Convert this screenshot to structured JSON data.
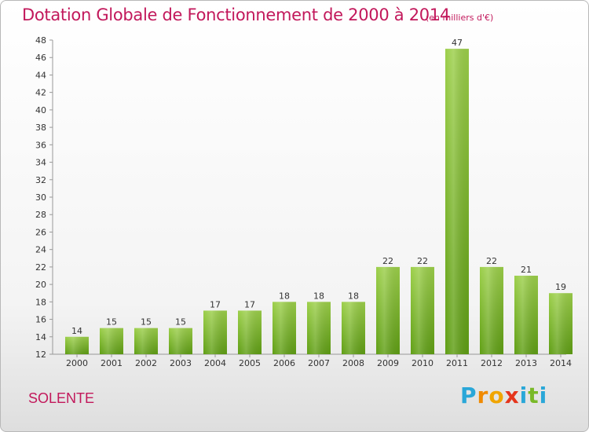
{
  "header": {
    "title": "Dotation Globale de Fonctionnement de 2000 à 2014",
    "subtitle": "(en milliers d'€)"
  },
  "commune": "SOLENTE",
  "logo": {
    "letters": [
      "P",
      "r",
      "o",
      "x",
      "i",
      "t",
      "i"
    ],
    "colors": [
      "#2aa7d8",
      "#f08a00",
      "#f0a500",
      "#e5351c",
      "#2aa7d8",
      "#79b928",
      "#2aa7d8"
    ]
  },
  "chart_data": {
    "type": "bar",
    "categories": [
      "2000",
      "2001",
      "2002",
      "2003",
      "2004",
      "2005",
      "2006",
      "2007",
      "2008",
      "2009",
      "2010",
      "2011",
      "2012",
      "2013",
      "2014"
    ],
    "values": [
      14,
      15,
      15,
      15,
      17,
      17,
      18,
      18,
      18,
      22,
      22,
      47,
      22,
      21,
      19
    ],
    "ylim": [
      12,
      48
    ],
    "yticks": [
      "12",
      "14",
      "16",
      "18",
      "20",
      "22",
      "24",
      "26",
      "28",
      "30",
      "32",
      "34",
      "36",
      "38",
      "40",
      "42",
      "44",
      "46",
      "48"
    ],
    "bar_color": "#7cbd2a",
    "grid": false,
    "legend": "none"
  }
}
